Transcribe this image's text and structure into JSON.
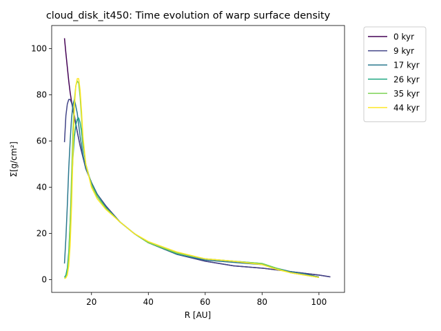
{
  "chart_data": {
    "type": "line",
    "title": "cloud_disk_it450: Time evolution of warp surface density",
    "xlabel": "R [AU]",
    "ylabel": "Σ[g/cm²]",
    "xlim": [
      6,
      109
    ],
    "ylim": [
      -5.5,
      110
    ],
    "xticks": [
      20,
      40,
      60,
      80,
      100
    ],
    "yticks": [
      0,
      20,
      40,
      60,
      80,
      100
    ],
    "grid": false,
    "legend_position": "outside-top-right",
    "series": [
      {
        "name": "0 kyr",
        "color": "#440154",
        "x": [
          10.5,
          11,
          11.5,
          12,
          12.5,
          13,
          14,
          15,
          16,
          17,
          18,
          20,
          22,
          25,
          30,
          35,
          40,
          50,
          60,
          70,
          80,
          90,
          100,
          104
        ],
        "y": [
          104.5,
          98,
          92,
          86,
          81,
          77,
          70,
          64,
          58,
          53,
          48,
          42,
          37,
          32,
          25,
          20,
          16,
          11,
          8,
          6,
          5,
          3.5,
          2,
          1.2
        ]
      },
      {
        "name": "9 kyr",
        "color": "#414487",
        "x": [
          10.5,
          11,
          11.5,
          12,
          12.5,
          13,
          13.5,
          14,
          15,
          16,
          17,
          18,
          20,
          22,
          25,
          30,
          35,
          40,
          50,
          60,
          70,
          80,
          90,
          100,
          104
        ],
        "y": [
          59.5,
          71,
          76,
          78,
          78,
          76.5,
          74,
          71,
          64,
          58,
          53,
          48.5,
          42,
          37,
          32,
          25,
          20,
          16,
          11,
          8,
          6,
          5,
          3.5,
          2,
          1.2
        ]
      },
      {
        "name": "17 kyr",
        "color": "#2a788e",
        "x": [
          10.5,
          11,
          11.5,
          12,
          12.5,
          13,
          13.5,
          14,
          15,
          16,
          17,
          18,
          20,
          22,
          25,
          30,
          35,
          40,
          50,
          60,
          70,
          80,
          85,
          90,
          95,
          100
        ],
        "y": [
          7,
          18,
          32,
          48,
          60,
          70,
          76,
          78,
          72,
          62,
          54,
          48,
          42,
          37,
          31.5,
          25,
          20,
          16,
          11,
          8.5,
          7.5,
          6.5,
          5,
          3.5,
          2.5,
          1.2
        ]
      },
      {
        "name": "26 kyr",
        "color": "#22a884",
        "x": [
          10.5,
          11,
          11.5,
          12,
          12.5,
          13,
          13.5,
          14,
          14.5,
          15,
          15.5,
          16,
          16.5,
          17,
          18,
          20,
          22,
          25,
          30,
          35,
          40,
          50,
          60,
          70,
          80,
          85,
          90,
          95,
          100
        ],
        "y": [
          1,
          2,
          5,
          12,
          25,
          40,
          53,
          62,
          67,
          69.5,
          70,
          68,
          64,
          58,
          50,
          41,
          36,
          31,
          25,
          20,
          16,
          11.5,
          9,
          8,
          7,
          5,
          3,
          2,
          1
        ]
      },
      {
        "name": "35 kyr",
        "color": "#7ad151",
        "x": [
          10.5,
          11,
          11.5,
          12,
          12.5,
          13,
          13.5,
          14,
          14.5,
          15,
          15.5,
          16,
          16.5,
          17,
          18,
          20,
          22,
          25,
          30,
          35,
          40,
          50,
          60,
          70,
          80,
          85,
          90,
          95,
          100
        ],
        "y": [
          0.5,
          1,
          3,
          10,
          25,
          45,
          65,
          78,
          84,
          86,
          85,
          79,
          70,
          60,
          50,
          41,
          36,
          31,
          25,
          20,
          16,
          11.5,
          9,
          8,
          7,
          5,
          3,
          2,
          1
        ]
      },
      {
        "name": "44 kyr",
        "color": "#fde725",
        "x": [
          10.5,
          11,
          11.5,
          12,
          12.5,
          13,
          13.5,
          14,
          14.5,
          15,
          15.5,
          16,
          16.5,
          17,
          18,
          20,
          22,
          25,
          30,
          35,
          40,
          50,
          60,
          70,
          80,
          85,
          90,
          95,
          100
        ],
        "y": [
          0.5,
          0.8,
          2,
          6,
          15,
          32,
          55,
          75,
          84,
          87,
          87,
          82,
          73,
          62,
          50,
          40,
          35,
          30.5,
          25,
          20,
          16.5,
          12,
          9,
          8,
          6.5,
          4.5,
          3,
          2,
          1
        ]
      }
    ]
  }
}
